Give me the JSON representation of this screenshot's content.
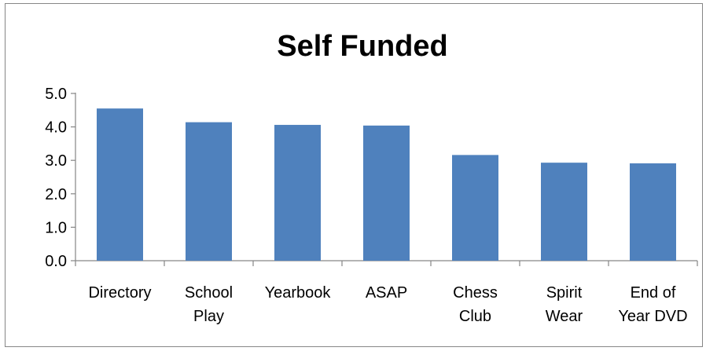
{
  "chart_data": {
    "type": "bar",
    "title": "Self Funded",
    "categories": [
      [
        "Directory"
      ],
      [
        "School",
        "Play"
      ],
      [
        "Yearbook"
      ],
      [
        "ASAP"
      ],
      [
        "Chess",
        "Club"
      ],
      [
        "Spirit",
        "Wear"
      ],
      [
        "End of",
        "Year DVD"
      ]
    ],
    "values": [
      4.55,
      4.14,
      4.06,
      4.04,
      3.16,
      2.93,
      2.91
    ],
    "ylim": [
      0,
      5
    ],
    "yticks": [
      "0.0",
      "1.0",
      "2.0",
      "3.0",
      "4.0",
      "5.0"
    ],
    "xlabel": "",
    "ylabel": "",
    "grid": false,
    "legend": "none",
    "bar_color": "#4F81BD",
    "axis_color": "#868686"
  }
}
